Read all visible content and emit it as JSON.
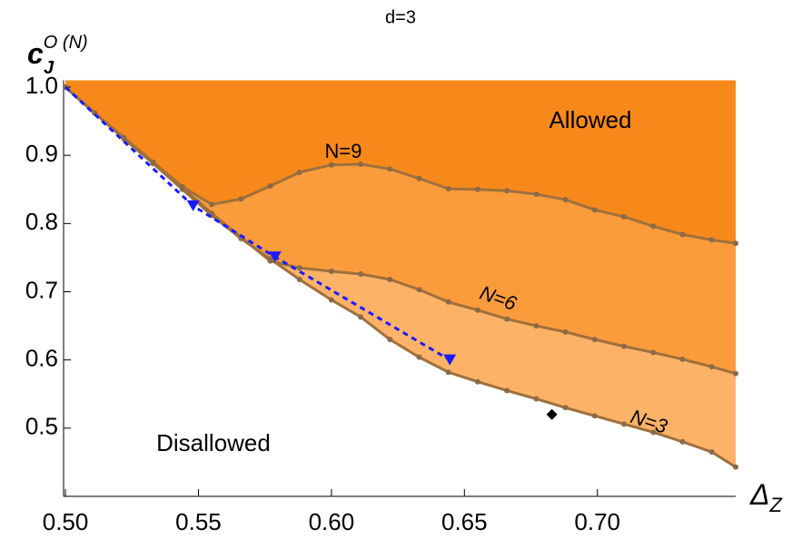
{
  "chart_data": {
    "type": "line",
    "title": "d=3",
    "ylabel": {
      "base": "c",
      "sub": "J",
      "sup": "O (N)"
    },
    "xlabel": {
      "base": "Δ",
      "sub": "Z"
    },
    "annotations": [
      "Allowed",
      "Disallowed"
    ],
    "xlim": [
      0.4993,
      0.752
    ],
    "ylim": [
      0.4,
      1.01
    ],
    "xticks": [
      {
        "value": 0.5,
        "label": "0.50"
      },
      0.55,
      {
        "value": 0.6,
        "label": "0.60"
      },
      0.65,
      {
        "value": 0.7,
        "label": "0.70"
      }
    ],
    "yticks": [
      0.5,
      0.6,
      0.7,
      0.8,
      0.9,
      {
        "value": 1.0,
        "label": "1.0"
      }
    ],
    "series": [
      {
        "name": "N=3",
        "color": "#a0703c",
        "fill": "#fcb267",
        "x": [
          0.5,
          0.511,
          0.522,
          0.533,
          0.544,
          0.555,
          0.566,
          0.577,
          0.588,
          0.6,
          0.611,
          0.622,
          0.633,
          0.644,
          0.655,
          0.666,
          0.677,
          0.688,
          0.699,
          0.71,
          0.721,
          0.732,
          0.743,
          0.752
        ],
        "values": [
          1.0,
          0.962,
          0.924,
          0.888,
          0.85,
          0.812,
          0.778,
          0.748,
          0.718,
          0.688,
          0.663,
          0.63,
          0.604,
          0.582,
          0.568,
          0.555,
          0.543,
          0.53,
          0.518,
          0.506,
          0.494,
          0.48,
          0.465,
          0.443
        ]
      },
      {
        "name": "N=6",
        "color": "#a0703c",
        "fill": "#fa9b3c",
        "x": [
          0.5,
          0.511,
          0.522,
          0.533,
          0.544,
          0.555,
          0.566,
          0.577,
          0.588,
          0.6,
          0.611,
          0.622,
          0.633,
          0.644,
          0.655,
          0.666,
          0.677,
          0.688,
          0.699,
          0.71,
          0.721,
          0.732,
          0.743,
          0.752
        ],
        "values": [
          1.0,
          0.962,
          0.925,
          0.889,
          0.852,
          0.815,
          0.78,
          0.745,
          0.735,
          0.73,
          0.726,
          0.718,
          0.703,
          0.685,
          0.673,
          0.66,
          0.65,
          0.641,
          0.63,
          0.62,
          0.611,
          0.601,
          0.59,
          0.58
        ]
      },
      {
        "name": "N=9",
        "color": "#a0703c",
        "fill": "#f7891b",
        "x": [
          0.5,
          0.511,
          0.522,
          0.533,
          0.544,
          0.555,
          0.566,
          0.577,
          0.588,
          0.6,
          0.611,
          0.622,
          0.633,
          0.644,
          0.655,
          0.666,
          0.677,
          0.688,
          0.699,
          0.71,
          0.721,
          0.732,
          0.743,
          0.752
        ],
        "values": [
          1.0,
          0.962,
          0.926,
          0.89,
          0.854,
          0.828,
          0.836,
          0.855,
          0.875,
          0.886,
          0.887,
          0.88,
          0.866,
          0.851,
          0.85,
          0.848,
          0.843,
          0.835,
          0.82,
          0.81,
          0.796,
          0.784,
          0.776,
          0.771
        ]
      },
      {
        "color": "#1a1aff",
        "dash": true,
        "marker": "triangle",
        "x": [
          0.5,
          0.548,
          0.5788,
          0.6445
        ],
        "values": [
          1.0,
          0.826,
          0.751,
          0.6
        ]
      },
      {
        "color": "#000000",
        "marker": "diamond",
        "x": [
          0.6829
        ],
        "values": [
          0.52
        ]
      }
    ]
  }
}
